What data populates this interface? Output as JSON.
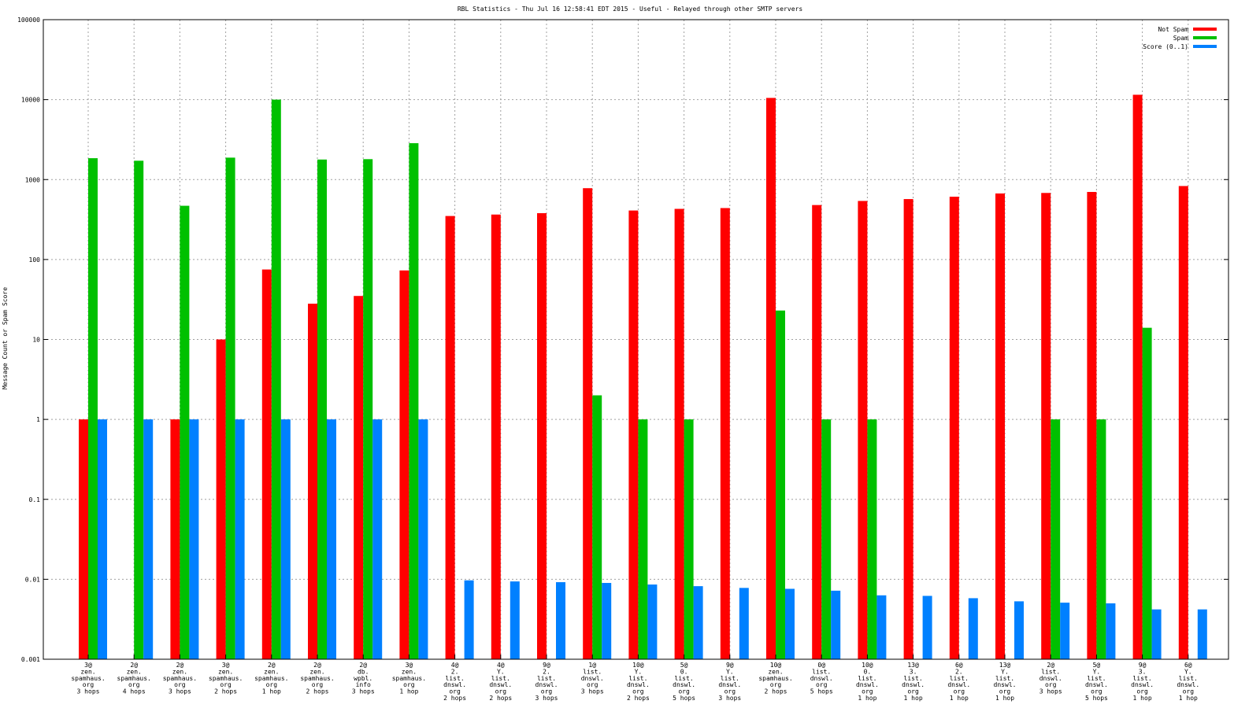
{
  "chart_data": {
    "type": "bar",
    "title": "RBL Statistics - Thu Jul 16 12:58:41 EDT 2015 - Useful - Relayed through other SMTP servers",
    "xlabel": "",
    "ylabel": "Message Count or Spam Score",
    "yscale": "log",
    "ylim": [
      0.001,
      100000
    ],
    "yticks": [
      "0.001",
      "0.01",
      "0.1",
      "1",
      "10",
      "100",
      "1000",
      "10000",
      "100000"
    ],
    "grid": true,
    "legend_position": "top-right",
    "categories": [
      [
        "3@",
        "zen.",
        "spamhaus.",
        "org",
        "3 hops"
      ],
      [
        "2@",
        "zen.",
        "spamhaus.",
        "org",
        "4 hops"
      ],
      [
        "2@",
        "zen.",
        "spamhaus.",
        "org",
        "3 hops"
      ],
      [
        "3@",
        "zen.",
        "spamhaus.",
        "org",
        "2 hops"
      ],
      [
        "2@",
        "zen.",
        "spamhaus.",
        "org",
        "1 hop"
      ],
      [
        "2@",
        "zen.",
        "spamhaus.",
        "org",
        "2 hops"
      ],
      [
        "2@",
        "db.",
        "wpbl.",
        "info",
        "3 hops"
      ],
      [
        "3@",
        "zen.",
        "spamhaus.",
        "org",
        "1 hop"
      ],
      [
        "4@",
        "2.",
        "list.",
        "dnswl.",
        "org",
        "2 hops"
      ],
      [
        "4@",
        "Y.",
        "list.",
        "dnswl.",
        "org",
        "2 hops"
      ],
      [
        "9@",
        "2.",
        "list.",
        "dnswl.",
        "org",
        "3 hops"
      ],
      [
        "1@",
        "list.",
        "dnswl.",
        "org",
        "3 hops"
      ],
      [
        "10@",
        "Y.",
        "list.",
        "dnswl.",
        "org",
        "2 hops"
      ],
      [
        "5@",
        "0.",
        "list.",
        "dnswl.",
        "org",
        "5 hops"
      ],
      [
        "9@",
        "Y.",
        "list.",
        "dnswl.",
        "org",
        "3 hops"
      ],
      [
        "10@",
        "zen.",
        "spamhaus.",
        "org",
        "2 hops"
      ],
      [
        "0@",
        "list.",
        "dnswl.",
        "org",
        "5 hops"
      ],
      [
        "10@",
        "0.",
        "list.",
        "dnswl.",
        "org",
        "1 hop"
      ],
      [
        "13@",
        "3.",
        "list.",
        "dnswl.",
        "org",
        "1 hop"
      ],
      [
        "6@",
        "2.",
        "list.",
        "dnswl.",
        "org",
        "1 hop"
      ],
      [
        "13@",
        "Y.",
        "list.",
        "dnswl.",
        "org",
        "1 hop"
      ],
      [
        "2@",
        "list.",
        "dnswl.",
        "org",
        "3 hops"
      ],
      [
        "5@",
        "Y.",
        "list.",
        "dnswl.",
        "org",
        "5 hops"
      ],
      [
        "9@",
        "3.",
        "list.",
        "dnswl.",
        "org",
        "1 hop"
      ],
      [
        "6@",
        "Y.",
        "list.",
        "dnswl.",
        "org",
        "1 hop"
      ]
    ],
    "series": [
      {
        "name": "Not Spam",
        "color": "#ff0000",
        "values": [
          1,
          null,
          1,
          10,
          75,
          28,
          35,
          73,
          350,
          365,
          380,
          780,
          410,
          430,
          440,
          10500,
          480,
          540,
          570,
          610,
          670,
          680,
          700,
          11500,
          830
        ]
      },
      {
        "name": "Spam",
        "color": "#00c000",
        "values": [
          1850,
          1720,
          470,
          1880,
          10000,
          1780,
          1800,
          2850,
          null,
          null,
          null,
          2,
          1,
          1,
          null,
          23,
          1,
          1,
          null,
          null,
          null,
          1,
          1,
          14,
          null
        ]
      },
      {
        "name": "Score (0..1)",
        "color": "#0080ff",
        "values": [
          1,
          1,
          1,
          1,
          1,
          1,
          1,
          1,
          0.0097,
          0.0094,
          0.0092,
          0.009,
          0.0086,
          0.0082,
          0.0078,
          0.0076,
          0.0072,
          0.0063,
          0.0062,
          0.0058,
          0.0053,
          0.0051,
          0.005,
          0.0042,
          0.0042
        ]
      }
    ]
  }
}
